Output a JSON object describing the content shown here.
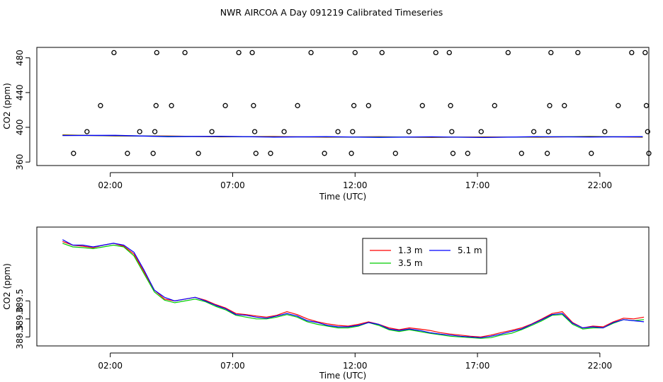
{
  "page": {
    "title": "NWR AIRCOA A  Day 091219  Calibrated Timeseries"
  },
  "chart_data": [
    {
      "id": "top",
      "type": "scatter",
      "xlabel": "Time (UTC)",
      "ylabel": "CO2 (ppm)",
      "xlim": [
        -1.0,
        24.0
      ],
      "ylim": [
        356,
        492
      ],
      "xticks": [
        2,
        7,
        12,
        17,
        22
      ],
      "xtick_labels": [
        "02:00",
        "07:00",
        "12:00",
        "17:00",
        "22:00"
      ],
      "yticks": [
        360,
        400,
        440,
        480
      ],
      "ytick_labels": [
        "360",
        "400",
        "440",
        "480"
      ],
      "points": [
        {
          "x": 0.5,
          "y": 370
        },
        {
          "x": 1.05,
          "y": 395
        },
        {
          "x": 1.6,
          "y": 425
        },
        {
          "x": 2.15,
          "y": 486
        },
        {
          "x": 2.7,
          "y": 370
        },
        {
          "x": 3.2,
          "y": 395
        },
        {
          "x": 3.75,
          "y": 370
        },
        {
          "x": 3.82,
          "y": 395
        },
        {
          "x": 3.87,
          "y": 425
        },
        {
          "x": 3.9,
          "y": 486
        },
        {
          "x": 4.5,
          "y": 425
        },
        {
          "x": 5.05,
          "y": 486
        },
        {
          "x": 5.6,
          "y": 370
        },
        {
          "x": 6.15,
          "y": 395
        },
        {
          "x": 6.7,
          "y": 425
        },
        {
          "x": 7.25,
          "y": 486
        },
        {
          "x": 7.8,
          "y": 486
        },
        {
          "x": 7.85,
          "y": 425
        },
        {
          "x": 7.9,
          "y": 395
        },
        {
          "x": 7.95,
          "y": 370
        },
        {
          "x": 8.55,
          "y": 370
        },
        {
          "x": 9.1,
          "y": 395
        },
        {
          "x": 9.65,
          "y": 425
        },
        {
          "x": 10.2,
          "y": 486
        },
        {
          "x": 10.75,
          "y": 370
        },
        {
          "x": 11.3,
          "y": 395
        },
        {
          "x": 11.85,
          "y": 370
        },
        {
          "x": 11.9,
          "y": 395
        },
        {
          "x": 11.95,
          "y": 425
        },
        {
          "x": 12.0,
          "y": 486
        },
        {
          "x": 12.55,
          "y": 425
        },
        {
          "x": 13.1,
          "y": 486
        },
        {
          "x": 13.65,
          "y": 370
        },
        {
          "x": 14.2,
          "y": 395
        },
        {
          "x": 14.75,
          "y": 425
        },
        {
          "x": 15.3,
          "y": 486
        },
        {
          "x": 15.85,
          "y": 486
        },
        {
          "x": 15.9,
          "y": 425
        },
        {
          "x": 15.95,
          "y": 395
        },
        {
          "x": 16.0,
          "y": 370
        },
        {
          "x": 16.6,
          "y": 370
        },
        {
          "x": 17.15,
          "y": 395
        },
        {
          "x": 17.7,
          "y": 425
        },
        {
          "x": 18.25,
          "y": 486
        },
        {
          "x": 18.8,
          "y": 370
        },
        {
          "x": 19.3,
          "y": 395
        },
        {
          "x": 19.85,
          "y": 370
        },
        {
          "x": 19.9,
          "y": 395
        },
        {
          "x": 19.95,
          "y": 425
        },
        {
          "x": 20.0,
          "y": 486
        },
        {
          "x": 20.55,
          "y": 425
        },
        {
          "x": 21.1,
          "y": 486
        },
        {
          "x": 21.65,
          "y": 370
        },
        {
          "x": 22.2,
          "y": 395
        },
        {
          "x": 22.75,
          "y": 425
        },
        {
          "x": 23.3,
          "y": 486
        },
        {
          "x": 23.85,
          "y": 486
        },
        {
          "x": 23.9,
          "y": 425
        },
        {
          "x": 23.95,
          "y": 395
        },
        {
          "x": 24.0,
          "y": 370
        }
      ],
      "baseline": {
        "series": [
          {
            "name": "1.3 m",
            "color": "#ff0000"
          },
          {
            "name": "3.5 m",
            "color": "#00cc00"
          },
          {
            "name": "5.1 m",
            "color": "#0000ff"
          }
        ],
        "x_start": 0.05,
        "x_end": 23.75,
        "values": [
          390.9,
          390.4,
          389.6,
          389.3,
          389.1,
          388.9,
          388.8,
          388.7,
          388.6,
          388.9,
          389.2,
          388.9
        ]
      }
    },
    {
      "id": "bottom",
      "type": "line",
      "xlabel": "Time (UTC)",
      "ylabel": "CO2 (ppm)",
      "xlim": [
        -1.0,
        24.0
      ],
      "ylim": [
        388.25,
        391.55
      ],
      "xticks": [
        2,
        7,
        12,
        17,
        22
      ],
      "xtick_labels": [
        "02:00",
        "07:00",
        "12:00",
        "17:00",
        "22:00"
      ],
      "yticks": [
        388.5,
        389.0,
        389.5
      ],
      "ytick_labels": [
        "388.5",
        "389.0",
        "389.5"
      ],
      "legend": {
        "placement": "top-center"
      },
      "x_start": 0.05,
      "x_end": 23.8,
      "series": [
        {
          "name": "1.3 m",
          "color": "#ff0000",
          "values": [
            391.15,
            391.05,
            391.02,
            390.98,
            391.05,
            391.1,
            391.02,
            390.8,
            390.3,
            389.8,
            389.55,
            389.5,
            389.55,
            389.6,
            389.52,
            389.4,
            389.3,
            389.15,
            389.12,
            389.08,
            389.05,
            389.1,
            389.2,
            389.12,
            389.0,
            388.92,
            388.86,
            388.82,
            388.8,
            388.85,
            388.92,
            388.85,
            388.75,
            388.7,
            388.75,
            388.72,
            388.68,
            388.62,
            388.58,
            388.55,
            388.52,
            388.5,
            388.55,
            388.62,
            388.68,
            388.75,
            388.86,
            389.0,
            389.15,
            389.2,
            388.9,
            388.75,
            388.8,
            388.78,
            388.92,
            389.02,
            389.0,
            389.05
          ]
        },
        {
          "name": "3.5 m",
          "color": "#00cc00",
          "values": [
            391.1,
            391.0,
            390.98,
            390.95,
            391.0,
            391.05,
            391.0,
            390.75,
            390.25,
            389.75,
            389.52,
            389.45,
            389.5,
            389.55,
            389.48,
            389.35,
            389.25,
            389.1,
            389.05,
            389.0,
            389.0,
            389.05,
            389.12,
            389.05,
            388.92,
            388.85,
            388.8,
            388.75,
            388.75,
            388.8,
            388.9,
            388.82,
            388.7,
            388.65,
            388.7,
            388.65,
            388.6,
            388.56,
            388.52,
            388.5,
            388.48,
            388.46,
            388.48,
            388.55,
            388.6,
            388.7,
            388.82,
            388.95,
            389.1,
            389.12,
            388.85,
            388.72,
            388.75,
            388.75,
            388.88,
            388.98,
            388.95,
            388.98
          ]
        },
        {
          "name": "5.1 m",
          "color": "#0000ff",
          "values": [
            391.2,
            391.05,
            391.05,
            391.0,
            391.05,
            391.1,
            391.05,
            390.85,
            390.35,
            389.8,
            389.6,
            389.5,
            389.55,
            389.6,
            389.5,
            389.38,
            389.28,
            389.12,
            389.1,
            389.05,
            389.02,
            389.08,
            389.15,
            389.08,
            388.95,
            388.9,
            388.82,
            388.78,
            388.78,
            388.82,
            388.9,
            388.85,
            388.72,
            388.68,
            388.72,
            388.68,
            388.62,
            388.58,
            388.55,
            388.52,
            388.5,
            388.48,
            388.52,
            388.58,
            388.65,
            388.72,
            388.85,
            388.98,
            389.12,
            389.15,
            388.88,
            388.75,
            388.78,
            388.75,
            388.9,
            388.98,
            388.95,
            388.92
          ]
        }
      ]
    }
  ]
}
